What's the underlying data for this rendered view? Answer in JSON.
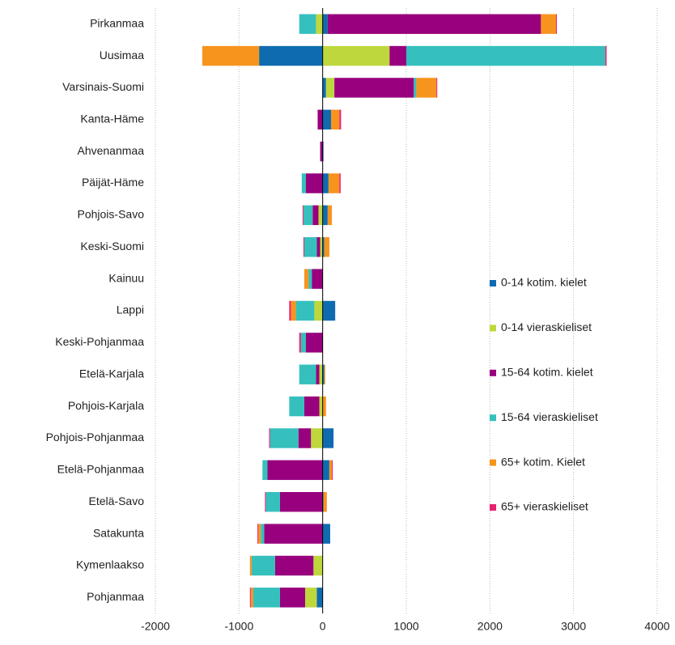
{
  "chart_data": {
    "type": "bar",
    "orientation": "horizontal",
    "stacked": true,
    "categories": [
      "Pirkanmaa",
      "Uusimaa",
      "Varsinais-Suomi",
      "Kanta-Häme",
      "Ahvenanmaa",
      "Päijät-Häme",
      "Pohjois-Savo",
      "Keski-Suomi",
      "Kainuu",
      "Lappi",
      "Keski-Pohjanmaa",
      "Etelä-Karjala",
      "Pohjois-Karjala",
      "Pohjois-Pohjanmaa",
      "Etelä-Pohjanmaa",
      "Etelä-Savo",
      "Satakunta",
      "Kymenlaakso",
      "Pohjanmaa"
    ],
    "series": [
      {
        "name": "0-14 kotim. kielet",
        "color": "#0f6bb0",
        "values": [
          60,
          -760,
          40,
          100,
          10,
          70,
          60,
          20,
          0,
          150,
          0,
          20,
          0,
          130,
          80,
          10,
          90,
          0,
          -70
        ]
      },
      {
        "name": "0-14 vieraskieliset",
        "color": "#bed73c",
        "values": [
          -80,
          800,
          100,
          0,
          0,
          0,
          -50,
          -30,
          0,
          -100,
          0,
          -40,
          -40,
          -140,
          0,
          0,
          0,
          -110,
          -140
        ]
      },
      {
        "name": "15-64 kotim. kielet",
        "color": "#98007e",
        "values": [
          2550,
          200,
          950,
          -60,
          -30,
          -200,
          -70,
          -40,
          -130,
          0,
          -200,
          -40,
          -180,
          -150,
          -660,
          -510,
          -700,
          -460,
          -300
        ]
      },
      {
        "name": "15-64 vieraskieliset",
        "color": "#35c0bd",
        "values": [
          -200,
          2380,
          30,
          0,
          0,
          -50,
          -110,
          -150,
          -40,
          -220,
          -60,
          -200,
          -180,
          -340,
          -60,
          -170,
          -40,
          -280,
          -320
        ]
      },
      {
        "name": "65+ kotim. Kielet",
        "color": "#f7941d",
        "values": [
          180,
          -680,
          240,
          100,
          0,
          130,
          50,
          60,
          -50,
          -60,
          0,
          10,
          40,
          0,
          30,
          40,
          -30,
          -20,
          -30
        ]
      },
      {
        "name": "65+ vieraskieliset",
        "color": "#e8216f",
        "values": [
          10,
          15,
          10,
          20,
          0,
          15,
          -10,
          -10,
          0,
          -20,
          -20,
          0,
          0,
          -10,
          10,
          -10,
          -10,
          0,
          -10
        ]
      }
    ],
    "xlim": [
      -2000,
      4000
    ],
    "xticks": [
      -2000,
      -1000,
      0,
      1000,
      2000,
      3000,
      4000
    ],
    "grid": true,
    "legend": "right"
  }
}
